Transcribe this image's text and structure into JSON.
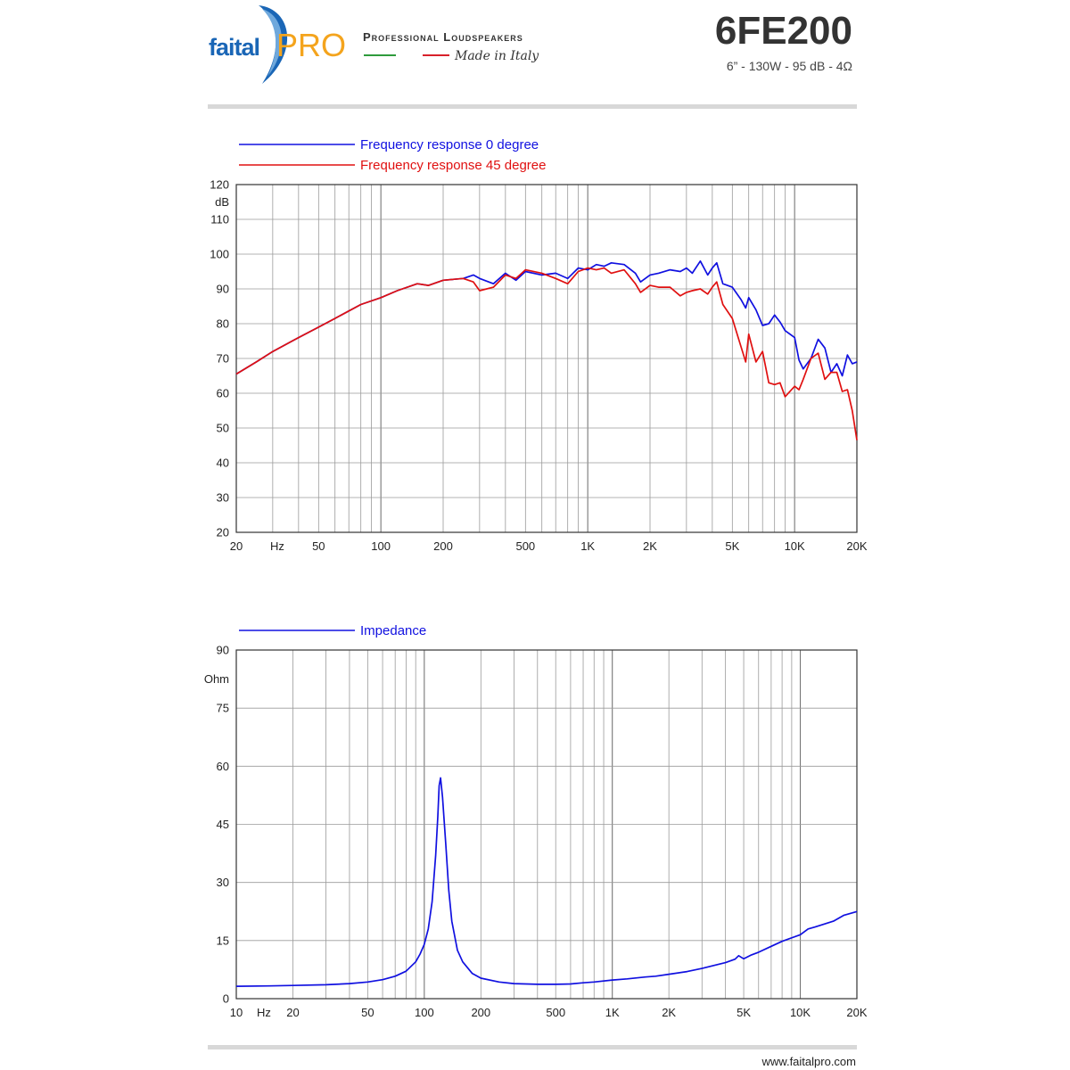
{
  "header": {
    "brand_faital": "faital",
    "brand_pro": "PRO",
    "tagline": "Professional Loudspeakers",
    "made_in": "Made in Italy",
    "model": "6FE200",
    "spec": "6” - 130W - 95 dB - 4Ω",
    "colors": {
      "brand_blue": "#1a66b6",
      "brand_orange": "#f4a41d",
      "italy_green": "#2e9b3c",
      "italy_red": "#d8202a"
    }
  },
  "footer": {
    "website": "www.faitalpro.com"
  },
  "chart_data": [
    {
      "type": "line",
      "id": "frequency",
      "xscale": "log",
      "xlim": [
        20,
        20000
      ],
      "ylim": [
        20,
        120
      ],
      "ylabel": "dB",
      "xunit": "Hz",
      "grid": true,
      "legend_position": "top-left",
      "y_ticks": [
        {
          "v": 20,
          "label": "20"
        },
        {
          "v": 30,
          "label": "30"
        },
        {
          "v": 40,
          "label": "40"
        },
        {
          "v": 50,
          "label": "50"
        },
        {
          "v": 60,
          "label": "60"
        },
        {
          "v": 70,
          "label": "70"
        },
        {
          "v": 80,
          "label": "80"
        },
        {
          "v": 90,
          "label": "90"
        },
        {
          "v": 100,
          "label": "100"
        },
        {
          "v": 110,
          "label": "110"
        },
        {
          "v": 120,
          "label": "120"
        }
      ],
      "x_ticks": [
        {
          "v": 20,
          "label": "20"
        },
        {
          "v": 50,
          "label": "50"
        },
        {
          "v": 100,
          "label": "100"
        },
        {
          "v": 200,
          "label": "200"
        },
        {
          "v": 500,
          "label": "500"
        },
        {
          "v": 1000,
          "label": "1K"
        },
        {
          "v": 2000,
          "label": "2K"
        },
        {
          "v": 5000,
          "label": "5K"
        },
        {
          "v": 10000,
          "label": "10K"
        },
        {
          "v": 20000,
          "label": "20K"
        }
      ],
      "series": [
        {
          "name": "Frequency response 0 degree",
          "color": "#1010e0",
          "x": [
            20,
            25,
            30,
            40,
            50,
            60,
            80,
            100,
            120,
            150,
            170,
            200,
            250,
            280,
            300,
            350,
            400,
            450,
            500,
            600,
            700,
            800,
            900,
            1000,
            1100,
            1200,
            1300,
            1500,
            1700,
            1800,
            2000,
            2200,
            2500,
            2800,
            3000,
            3200,
            3500,
            3800,
            4000,
            4200,
            4500,
            5000,
            5500,
            5800,
            6000,
            6500,
            7000,
            7500,
            8000,
            8500,
            9000,
            10000,
            10500,
            11000,
            12000,
            13000,
            14000,
            15000,
            16000,
            17000,
            18000,
            19000,
            20000
          ],
          "y": [
            65.5,
            69,
            72,
            76,
            79,
            81.5,
            85.5,
            87.5,
            89.5,
            91.5,
            91,
            92.5,
            93,
            94,
            93,
            91.5,
            94.5,
            92.5,
            95,
            94,
            94.5,
            93,
            96,
            95.5,
            97,
            96.5,
            97.5,
            97,
            94.5,
            92,
            94,
            94.5,
            95.5,
            95,
            96,
            94.5,
            98,
            94,
            96,
            97.5,
            91.5,
            90.5,
            87,
            84.5,
            87.5,
            84,
            79.5,
            80,
            82.5,
            80.5,
            78,
            76,
            69.5,
            67,
            70,
            75.5,
            73,
            66,
            68.5,
            65,
            71,
            68.5,
            69
          ]
        },
        {
          "name": "Frequency response 45 degree",
          "color": "#e01010",
          "x": [
            20,
            25,
            30,
            40,
            50,
            60,
            80,
            100,
            120,
            150,
            170,
            200,
            250,
            280,
            300,
            350,
            400,
            450,
            500,
            600,
            700,
            800,
            900,
            1000,
            1100,
            1200,
            1300,
            1500,
            1700,
            1800,
            2000,
            2200,
            2500,
            2800,
            3000,
            3200,
            3500,
            3800,
            4000,
            4200,
            4500,
            5000,
            5500,
            5800,
            6000,
            6500,
            7000,
            7500,
            8000,
            8500,
            9000,
            10000,
            10500,
            11000,
            12000,
            13000,
            14000,
            15000,
            16000,
            17000,
            18000,
            19000,
            20000
          ],
          "y": [
            65.5,
            69,
            72,
            76,
            79,
            81.5,
            85.5,
            87.5,
            89.5,
            91.5,
            91,
            92.5,
            93,
            92,
            89.5,
            90.5,
            94,
            93,
            95.5,
            94.5,
            93,
            91.5,
            95,
            96,
            95.5,
            96,
            94.5,
            95.5,
            91.5,
            89,
            91,
            90.5,
            90.5,
            88,
            89,
            89.5,
            90,
            88.5,
            90.5,
            92,
            85.5,
            81.5,
            73.5,
            69,
            77,
            69,
            72,
            63,
            62.5,
            63,
            59,
            62,
            61,
            64,
            70,
            71.5,
            64,
            66,
            66,
            60.5,
            61,
            55,
            46.5
          ]
        }
      ]
    },
    {
      "type": "line",
      "id": "impedance",
      "xscale": "log",
      "xlim": [
        10,
        20000
      ],
      "ylim": [
        0,
        90
      ],
      "ylabel": "Ohm",
      "xunit": "Hz",
      "grid": true,
      "legend_position": "top-left",
      "y_ticks": [
        {
          "v": 0,
          "label": "0"
        },
        {
          "v": 15,
          "label": "15"
        },
        {
          "v": 30,
          "label": "30"
        },
        {
          "v": 45,
          "label": "45"
        },
        {
          "v": 60,
          "label": "60"
        },
        {
          "v": 75,
          "label": "75"
        },
        {
          "v": 90,
          "label": "90"
        }
      ],
      "x_ticks": [
        {
          "v": 10,
          "label": "10"
        },
        {
          "v": 20,
          "label": "20"
        },
        {
          "v": 50,
          "label": "50"
        },
        {
          "v": 100,
          "label": "100"
        },
        {
          "v": 200,
          "label": "200"
        },
        {
          "v": 500,
          "label": "500"
        },
        {
          "v": 1000,
          "label": "1K"
        },
        {
          "v": 2000,
          "label": "2K"
        },
        {
          "v": 5000,
          "label": "5K"
        },
        {
          "v": 10000,
          "label": "10K"
        },
        {
          "v": 20000,
          "label": "20K"
        }
      ],
      "series": [
        {
          "name": "Impedance",
          "color": "#1010e0",
          "x": [
            10,
            15,
            20,
            30,
            40,
            50,
            60,
            70,
            80,
            90,
            95,
            100,
            105,
            110,
            115,
            118,
            120,
            122,
            125,
            130,
            135,
            140,
            150,
            160,
            180,
            200,
            250,
            300,
            400,
            500,
            600,
            700,
            800,
            1000,
            1200,
            1500,
            1700,
            2000,
            2500,
            3000,
            3500,
            4000,
            4500,
            4700,
            5000,
            5500,
            6000,
            7000,
            8000,
            10000,
            11000,
            12000,
            15000,
            17000,
            20000
          ],
          "y": [
            3.2,
            3.3,
            3.4,
            3.6,
            3.9,
            4.3,
            4.9,
            5.8,
            7.1,
            9.5,
            11.5,
            14,
            18,
            25,
            37,
            47,
            55,
            57,
            52,
            40,
            28,
            20,
            12.5,
            9.5,
            6.5,
            5.3,
            4.3,
            3.9,
            3.7,
            3.7,
            3.8,
            4.1,
            4.3,
            4.8,
            5.1,
            5.6,
            5.8,
            6.3,
            7,
            7.8,
            8.6,
            9.3,
            10.2,
            11.1,
            10.3,
            11.3,
            12,
            13.5,
            14.8,
            16.5,
            18,
            18.5,
            20,
            21.5,
            22.5
          ]
        }
      ]
    }
  ]
}
